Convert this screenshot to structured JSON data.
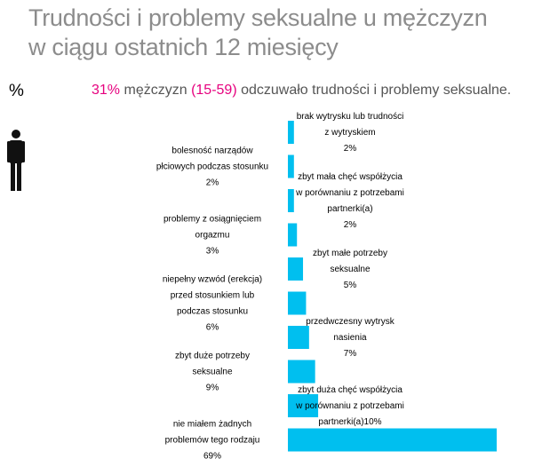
{
  "title": {
    "line1": "Trudności i problemy seksualne u mężczyzn",
    "line2": "w ciągu ostatnich 12 miesięcy"
  },
  "percent_symbol": "%",
  "subtitle": {
    "highlight": "31%",
    "word": "mężczyzn",
    "age": "(15-59)",
    "rest": "odczuwało trudności i problemy seksualne."
  },
  "colors": {
    "bar": "#00bfef",
    "title": "#8c8c8c",
    "accent": "#e6007e"
  },
  "icons": [
    "person-icon"
  ],
  "chart_data": {
    "type": "bar",
    "orientation": "horizontal",
    "unit": "%",
    "categories": [
      "brak wytrysku lub trudności z wytryskiem",
      "bolesność narządów płciowych podczas stosunku",
      "zbyt mała chęć współżycia w porównaniu z potrzebami partnerki(a)",
      "problemy z osiągnięciem orgazmu",
      "zbyt małe potrzeby seksualne",
      "niepełny wzwód (erekcja) przed stosunkiem lub podczas stosunku",
      "przedwczesny wytrysk nasienia",
      "zbyt duże potrzeby seksualne",
      "zbyt duża chęć współżycia w porównaniu z potrzebami partnerki(a)",
      "nie miałem żadnych problemów tego rodzaju"
    ],
    "values": [
      2,
      2,
      2,
      3,
      5,
      6,
      7,
      9,
      10,
      69
    ],
    "labels": [
      {
        "lines": [
          "brak wytrysku lub trudności",
          "z wytryskiem",
          "2%"
        ],
        "side": "right"
      },
      {
        "lines": [
          "bolesność narządów",
          "płciowych podczas stosunku",
          "2%"
        ],
        "side": "left"
      },
      {
        "lines": [
          "zbyt mała chęć współżycia",
          "w porównaniu z potrzebami",
          "partnerki(a)",
          "2%"
        ],
        "side": "right"
      },
      {
        "lines": [
          "problemy z osiągnięciem",
          "orgazmu",
          "3%"
        ],
        "side": "left"
      },
      {
        "lines": [
          "zbyt małe potrzeby",
          "seksualne",
          "5%"
        ],
        "side": "right"
      },
      {
        "lines": [
          "niepełny wzwód (erekcja)",
          "przed stosunkiem lub",
          "podczas stosunku",
          "6%"
        ],
        "side": "left"
      },
      {
        "lines": [
          "przedwczesny wytrysk",
          "nasienia",
          "7%"
        ],
        "side": "right"
      },
      {
        "lines": [
          "zbyt duże potrzeby",
          "seksualne",
          "9%"
        ],
        "side": "left"
      },
      {
        "lines": [
          "zbyt duża chęć współżycia",
          "w porównaniu z potrzebami",
          "partnerki(a)10%"
        ],
        "side": "right"
      },
      {
        "lines": [
          "nie miałem żadnych",
          "problemów tego rodzaju",
          "69%"
        ],
        "side": "left"
      }
    ],
    "xlim": [
      0,
      70
    ],
    "grid": false,
    "legend": "none"
  }
}
